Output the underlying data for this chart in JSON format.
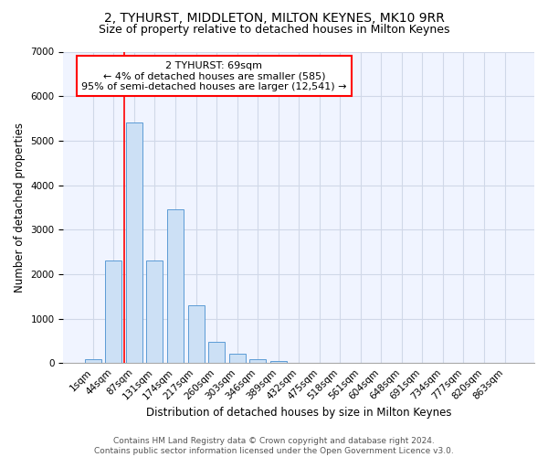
{
  "title": "2, TYHURST, MIDDLETON, MILTON KEYNES, MK10 9RR",
  "subtitle": "Size of property relative to detached houses in Milton Keynes",
  "xlabel": "Distribution of detached houses by size in Milton Keynes",
  "ylabel": "Number of detached properties",
  "categories": [
    "1sqm",
    "44sqm",
    "87sqm",
    "131sqm",
    "174sqm",
    "217sqm",
    "260sqm",
    "303sqm",
    "346sqm",
    "389sqm",
    "432sqm",
    "475sqm",
    "518sqm",
    "561sqm",
    "604sqm",
    "648sqm",
    "691sqm",
    "734sqm",
    "777sqm",
    "820sqm",
    "863sqm"
  ],
  "values": [
    80,
    2300,
    5400,
    2300,
    3450,
    1300,
    480,
    200,
    90,
    50,
    0,
    0,
    0,
    0,
    0,
    0,
    0,
    0,
    0,
    0,
    0
  ],
  "bar_color": "#cce0f5",
  "bar_edge_color": "#5b9bd5",
  "red_line_x": 1.5,
  "annotation_text": "2 TYHURST: 69sqm\n← 4% of detached houses are smaller (585)\n95% of semi-detached houses are larger (12,541) →",
  "ylim": [
    0,
    7000
  ],
  "grid_color": "#d0d8e8",
  "background_color": "#f0f4ff",
  "footer_line1": "Contains HM Land Registry data © Crown copyright and database right 2024.",
  "footer_line2": "Contains public sector information licensed under the Open Government Licence v3.0.",
  "title_fontsize": 10,
  "subtitle_fontsize": 9,
  "xlabel_fontsize": 8.5,
  "ylabel_fontsize": 8.5,
  "tick_fontsize": 7.5,
  "annotation_fontsize": 8,
  "footer_fontsize": 6.5
}
